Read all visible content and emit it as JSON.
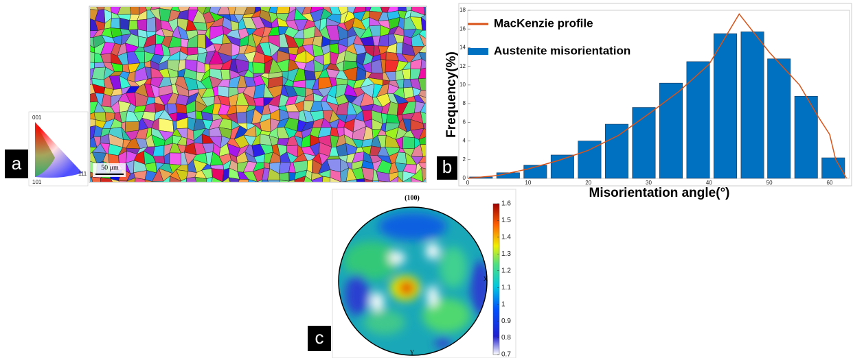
{
  "panels": {
    "a": {
      "label": "a",
      "ipf_labels": [
        "001",
        "101",
        "111"
      ],
      "scale_bar": "50 μm"
    },
    "b": {
      "label": "b"
    },
    "c": {
      "label": "c",
      "title": "(100)",
      "axis_labels": [
        "X",
        "Y"
      ],
      "colorbar": {
        "lim": [
          0.7,
          1.6
        ],
        "ticks": [
          0.7,
          0.8,
          0.9,
          1,
          1.1,
          1.2,
          1.3,
          1.4,
          1.5,
          1.6
        ]
      }
    }
  },
  "chart_data": {
    "type": "bar",
    "x_label": "Misorientation angle(°)",
    "y_label": "Frequency(%)",
    "xlim": [
      0,
      63.3
    ],
    "xticks": [
      0,
      10,
      20,
      30,
      40,
      50,
      60
    ],
    "ylim": [
      0,
      18
    ],
    "yticks": [
      0,
      2,
      4,
      6,
      8,
      10,
      12,
      14,
      16,
      18
    ],
    "legend": "upper left",
    "series": [
      {
        "name": "MacKenzie profile",
        "type": "line",
        "color": "#d95319",
        "x": [
          0,
          5,
          10,
          15,
          20,
          25,
          30,
          35,
          40,
          45,
          50,
          55,
          58,
          60,
          61,
          62.8
        ],
        "values": [
          0,
          0.3,
          1.0,
          1.9,
          3.0,
          4.6,
          6.9,
          9.3,
          12.2,
          17.6,
          13.5,
          10.0,
          6.7,
          4.7,
          2.0,
          0
        ]
      },
      {
        "name": "Austenite misorientation",
        "type": "bar",
        "color": "#0070c0",
        "x": [
          2.2,
          6.7,
          11.2,
          15.7,
          20.2,
          24.7,
          29.2,
          33.7,
          38.2,
          42.7,
          47.2,
          51.6,
          56.1,
          60.6
        ],
        "values": [
          0.15,
          0.6,
          1.4,
          2.5,
          4.0,
          5.8,
          7.6,
          10.2,
          12.5,
          15.5,
          15.7,
          12.8,
          8.8,
          2.2
        ]
      }
    ]
  }
}
